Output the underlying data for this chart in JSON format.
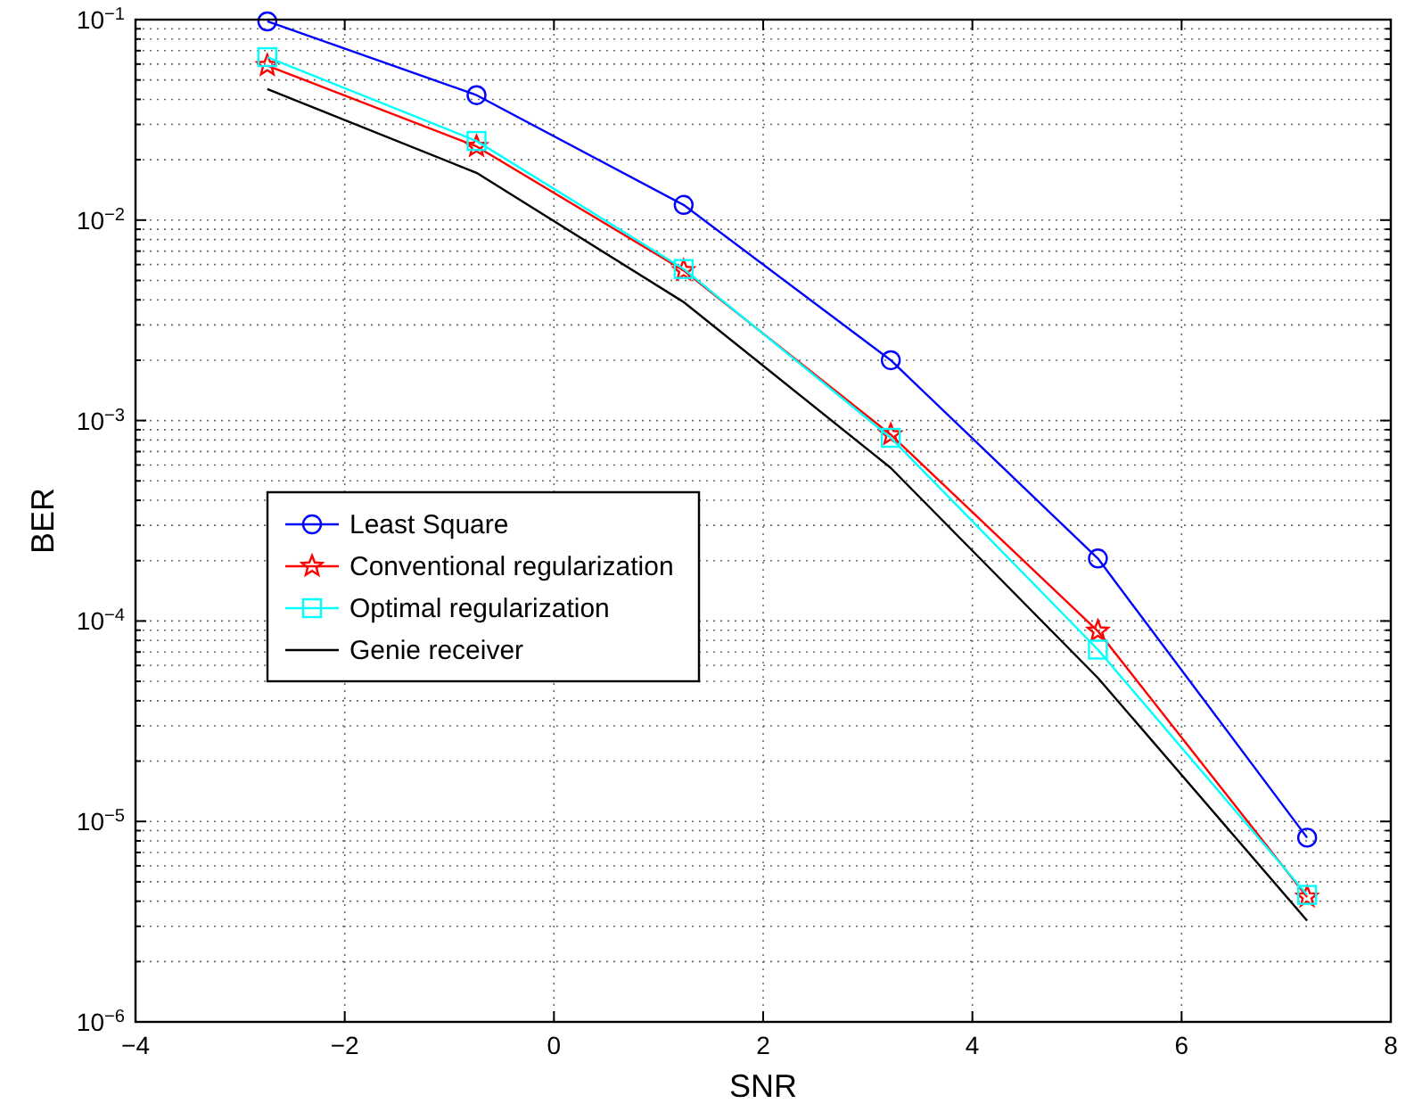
{
  "chart_data": {
    "type": "line",
    "xlabel": "SNR",
    "ylabel": "BER",
    "log": "y",
    "grid": true,
    "legend": "left",
    "xlim": [
      -4,
      8
    ],
    "xticks": [
      {
        "value": -4,
        "label": "−4"
      },
      {
        "value": -2,
        "label": "−2"
      },
      0,
      2,
      4,
      6,
      8
    ],
    "ylim": [
      1e-06,
      0.1
    ],
    "yticks": [
      {
        "value": 1e-06,
        "label": "10$^{−6}$"
      },
      {
        "value": 1e-05,
        "label": "10$^{−5}$"
      },
      {
        "value": 0.0001,
        "label": "10$^{−4}$"
      },
      {
        "value": 0.001,
        "label": "10$^{−3}$"
      },
      {
        "value": 0.01,
        "label": "10$^{−2}$"
      },
      {
        "value": 0.1,
        "label": "10$^{−1}$"
      }
    ],
    "x": [
      -2.74,
      -0.74,
      1.24,
      3.22,
      5.2,
      7.2
    ],
    "series": [
      {
        "name": "Least Square",
        "color": "#0000ff",
        "marker": "circle",
        "values": [
          0.098,
          0.042,
          0.0119,
          0.002,
          0.000205,
          8.3e-06
        ]
      },
      {
        "name": "Conventional regularization",
        "color": "#ff0000",
        "marker": "star",
        "values": [
          0.059,
          0.0233,
          0.0056,
          0.00085,
          8.9e-05,
          4.2e-06
        ]
      },
      {
        "name": "Optimal regularization",
        "color": "#00ffff",
        "marker": "square",
        "values": [
          0.065,
          0.0248,
          0.0057,
          0.00082,
          7.2e-05,
          4.3e-06
        ]
      },
      {
        "name": "Genie receiver",
        "color": "#000000",
        "marker": "none",
        "values": [
          0.045,
          0.0172,
          0.0039,
          0.00058,
          5.2e-05,
          3.2e-06
        ]
      }
    ]
  }
}
